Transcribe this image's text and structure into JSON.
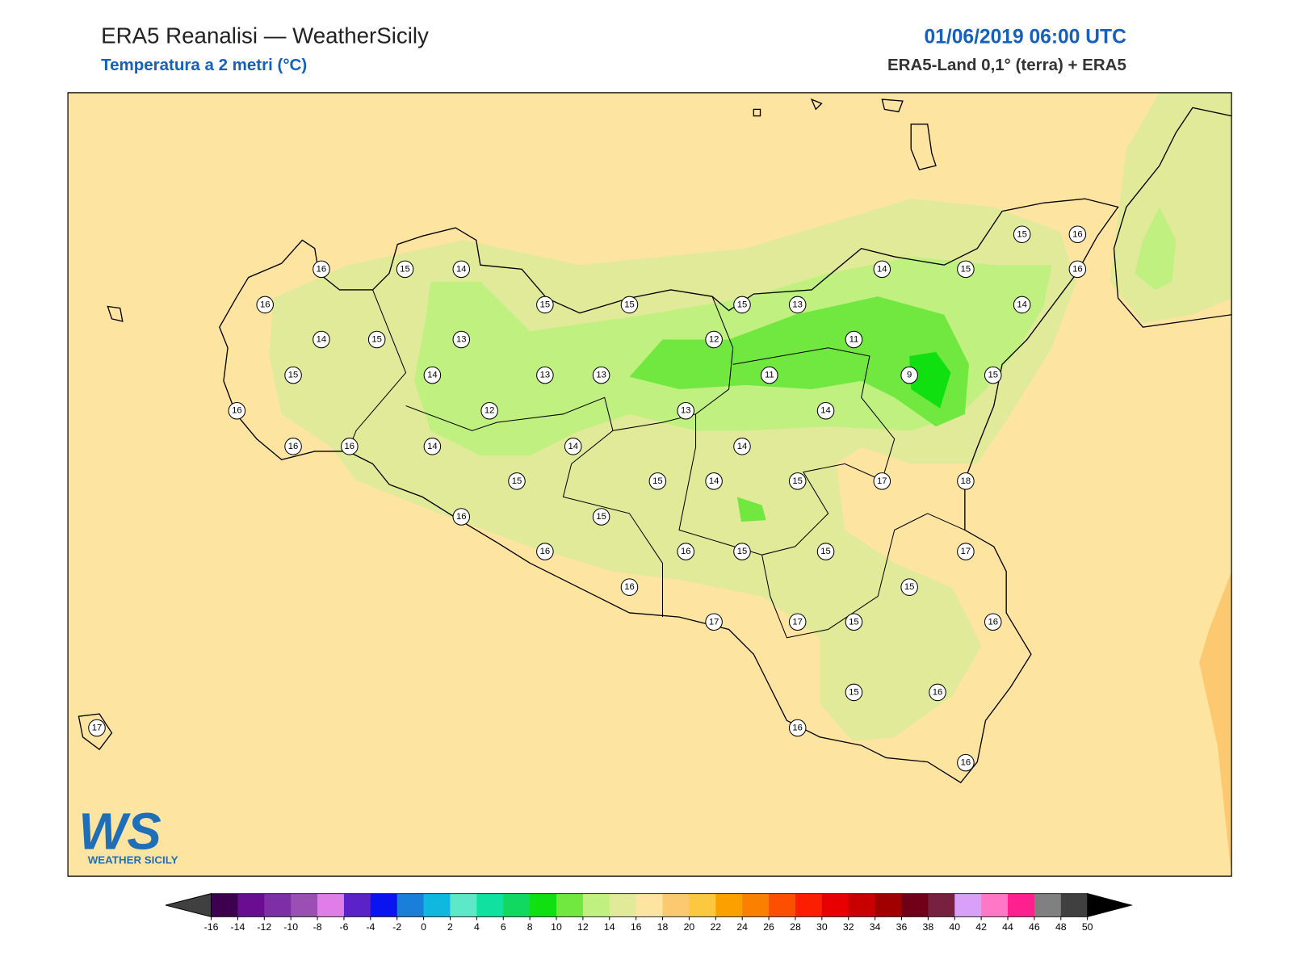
{
  "header": {
    "title": "ERA5 Reanalisi — WeatherSicily",
    "subtitle": "Temperatura a 2 metri (°C)",
    "date": "01/06/2019 06:00 UTC",
    "source": "ERA5-Land 0,1° (terra) + ERA5"
  },
  "stations": {
    "values": [
      16,
      15,
      14,
      16,
      14,
      15,
      13,
      15,
      14,
      13,
      13,
      16,
      12,
      13,
      16,
      16,
      14,
      14,
      15,
      15,
      14,
      16,
      15,
      16,
      16,
      15,
      15,
      15,
      13,
      12,
      11,
      11,
      9,
      14,
      14,
      15,
      17,
      18,
      16,
      15,
      15,
      17,
      15,
      16,
      17,
      17,
      15,
      15,
      16,
      16,
      16,
      17,
      14,
      15,
      15,
      16,
      16,
      14,
      15
    ]
  },
  "colorbar": {
    "ticks": [
      -16,
      -14,
      -12,
      -10,
      -8,
      -6,
      -4,
      -2,
      0,
      2,
      4,
      6,
      8,
      10,
      12,
      14,
      16,
      18,
      20,
      22,
      24,
      26,
      28,
      30,
      32,
      34,
      36,
      38,
      40,
      42,
      44,
      46,
      48,
      50
    ],
    "colors": [
      "#3d0050",
      "#6a0d91",
      "#7f2fa5",
      "#9b4fb5",
      "#e07de8",
      "#5a22c8",
      "#0a14f0",
      "#1a7fd8",
      "#10b8e0",
      "#5de8c8",
      "#10e0a0",
      "#10d860",
      "#10e010",
      "#70e840",
      "#c0f080",
      "#e0ea98",
      "#fde4a0",
      "#fcc870",
      "#fcc840",
      "#fca000",
      "#fc8000",
      "#fc5000",
      "#fc1e00",
      "#e80000",
      "#c80000",
      "#a00000",
      "#700018",
      "#782040",
      "#d8a0f8",
      "#ff78c8",
      "#ff2090",
      "#808080",
      "#404040"
    ],
    "under_color": "#404040",
    "over_color": "#000000"
  },
  "logo": {
    "mark": "WS",
    "name": "WEATHER SICILY"
  }
}
